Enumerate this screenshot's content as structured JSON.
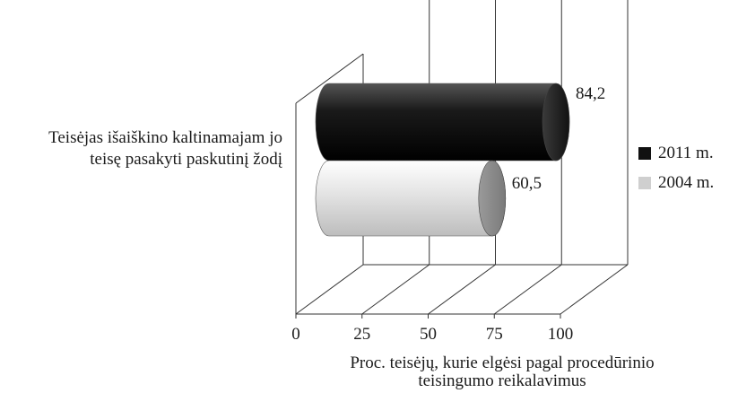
{
  "chart_data": {
    "type": "bar",
    "orientation": "horizontal",
    "style": "3d-cylinder",
    "categories": [
      "Teisėjas išaiškino kaltinamajam jo teisę pasakyti paskutinį žodį"
    ],
    "category_lines": [
      "Teisėjas išaiškino kaltinamajam jo",
      "teisę pasakyti paskutinį žodį"
    ],
    "series": [
      {
        "name": "2011 m.",
        "values": [
          84.2
        ],
        "value_labels": [
          "84,2"
        ],
        "color": "#111111"
      },
      {
        "name": "2004 m.",
        "values": [
          60.5
        ],
        "value_labels": [
          "60,5"
        ],
        "color": "#cfcfcf"
      }
    ],
    "x_ticks": [
      "0",
      "25",
      "50",
      "75",
      "100"
    ],
    "x_tick_values": [
      0,
      25,
      50,
      75,
      100
    ],
    "xlim": [
      0,
      100
    ],
    "xlabel_lines": [
      "Proc. teisėjų, kurie elgėsi pagal procedūrinio",
      "teisingumo reikalavimus"
    ],
    "legend_position": "right",
    "grid": true
  }
}
